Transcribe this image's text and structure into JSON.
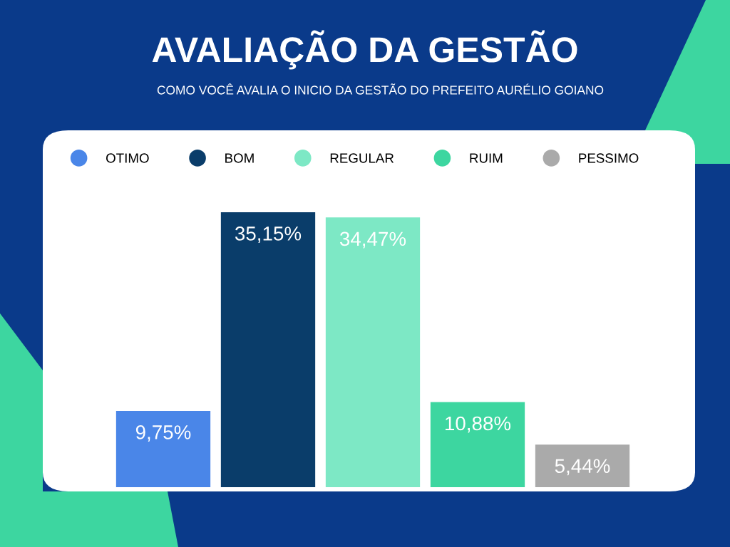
{
  "chart_data": {
    "type": "bar",
    "title": "AVALIAÇÃO DA GESTÃO",
    "subtitle": "COMO VOCÊ AVALIA O INICIO DA GESTÃO DO PREFEITO AURÉLIO GOIANO",
    "categories": [
      null,
      null,
      null,
      null,
      null
    ],
    "stacked": true,
    "series": [
      {
        "name": "OTIMO",
        "color": "#4a86e8",
        "values": [
          9.75,
          null,
          null,
          null,
          null
        ],
        "value_labels": [
          "9,75%",
          null,
          null,
          null,
          null
        ]
      },
      {
        "name": "BOM",
        "color": "#0a3d6a",
        "values": [
          null,
          35.15,
          null,
          null,
          null
        ],
        "value_labels": [
          null,
          "35,15%",
          null,
          null,
          null
        ]
      },
      {
        "name": "REGULAR",
        "color": "#7de8c5",
        "values": [
          null,
          null,
          34.47,
          null,
          null
        ],
        "value_labels": [
          null,
          null,
          "34,47%",
          null,
          null
        ]
      },
      {
        "name": "RUIM",
        "color": "#3dd6a0",
        "values": [
          null,
          null,
          null,
          10.88,
          null
        ],
        "value_labels": [
          null,
          null,
          null,
          "10,88%",
          null
        ]
      },
      {
        "name": "PESSIMO",
        "color": "#aaaaaa",
        "values": [
          null,
          null,
          null,
          null,
          5.44
        ],
        "value_labels": [
          null,
          null,
          null,
          null,
          "5,44%"
        ]
      }
    ],
    "legend": "top left",
    "grid": false
  }
}
